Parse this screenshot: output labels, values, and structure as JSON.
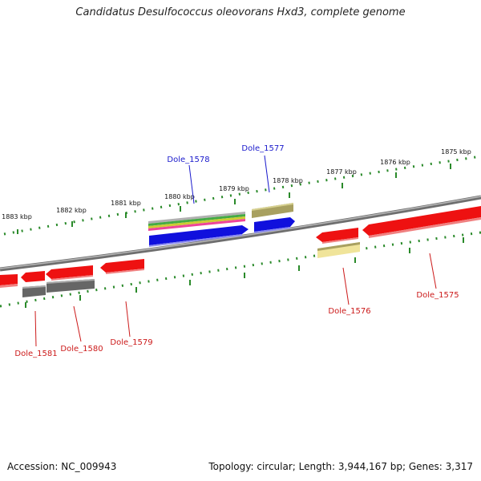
{
  "title": "Candidatus Desulfococcus oleovorans Hxd3, complete genome",
  "footer": {
    "accession": "Accession: NC_009943",
    "summary": "Topology: circular; Length: 3,944,167 bp; Genes: 3,317"
  },
  "colors": {
    "backbone": "#7a7a7a",
    "scale_ticks": "#2a8a2a",
    "reverse_gene": "#ee1111",
    "forward_gene": "#1010dd",
    "pseudo_gene": "#666666",
    "olive_feature": "#a8a060",
    "pale_feature": "#f0e49a",
    "top_label": "#1a1acc",
    "bottom_label": "#cc1a1a"
  },
  "kbp_labels": [
    "1875 kbp",
    "1876 kbp",
    "1877 kbp",
    "1878 kbp",
    "1879 kbp",
    "1880 kbp",
    "1881 kbp",
    "1882 kbp",
    "1883 kbp"
  ],
  "top_gene_labels": [
    "Dole_1577",
    "Dole_1578"
  ],
  "bottom_gene_labels": [
    "Dole_1575",
    "Dole_1576",
    "Dole_1579",
    "Dole_1580",
    "Dole_1581"
  ]
}
